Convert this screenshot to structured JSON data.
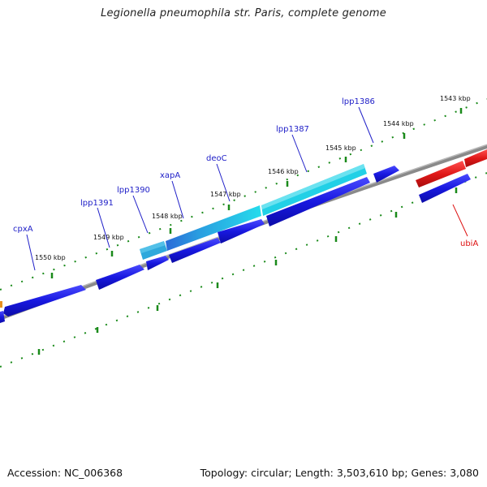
{
  "title": "Legionella pneumophila str. Paris, complete genome",
  "footer": {
    "accession": "Accession: NC_006368",
    "summary": "Topology: circular; Length: 3,503,610 bp; Genes: 3,080"
  },
  "ruler_labels": [
    "1543 kbp",
    "1544 kbp",
    "1545 kbp",
    "1546 kbp",
    "1547 kbp",
    "1548 kbp",
    "1549 kbp",
    "1550 kbp"
  ],
  "genes": [
    {
      "name": "cpxA",
      "color": "#2020c8"
    },
    {
      "name": "lpp1391",
      "color": "#2020c8"
    },
    {
      "name": "lpp1390",
      "color": "#2020c8"
    },
    {
      "name": "xapA",
      "color": "#2020c8"
    },
    {
      "name": "deoC",
      "color": "#2020c8"
    },
    {
      "name": "lpp1387",
      "color": "#2020c8"
    },
    {
      "name": "lpp1386",
      "color": "#2020c8"
    },
    {
      "name": "ubiA",
      "color": "#dd1010"
    }
  ],
  "colors": {
    "forward_strand": "#1414d4",
    "reverse_strand": "#1414d4",
    "highlight_cyan": "#22d4e6",
    "highlight_blue": "#2a8ad8",
    "rna_red": "#e01818",
    "ruler_green": "#1a8a1a",
    "backbone": "#808080"
  }
}
